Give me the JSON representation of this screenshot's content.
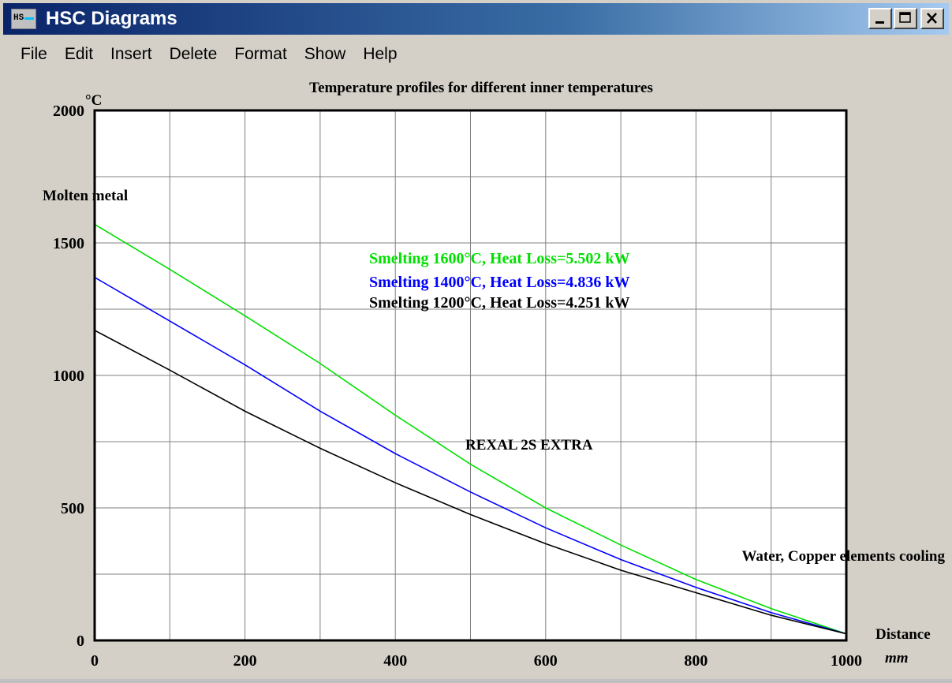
{
  "window": {
    "title": "HSC Diagrams",
    "icon": "hsc-app-icon",
    "controls": [
      "minimize-icon",
      "maximize-icon",
      "close-icon"
    ]
  },
  "menu": {
    "items": [
      "File",
      "Edit",
      "Insert",
      "Delete",
      "Format",
      "Show",
      "Help"
    ]
  },
  "colors": {
    "plot_background": "#ffffff",
    "green_series": "#00e000",
    "blue_series": "#0000ff",
    "black_series": "#000000"
  },
  "chart_data": {
    "type": "line",
    "title": "Temperature profiles for different inner temperatures",
    "ylabel": "°C",
    "xlabel": "Distance",
    "xunit": "mm",
    "xlim": [
      0,
      1000
    ],
    "ylim": [
      0,
      2000
    ],
    "xticks": [
      "0",
      "200",
      "400",
      "600",
      "800",
      "1000"
    ],
    "yticks": [
      "0",
      "500",
      "1000",
      "1500",
      "2000"
    ],
    "grid": true,
    "series": [
      {
        "name": "Smelting 1600°C, Heat Loss=5.502 kW",
        "x": [
          0,
          0,
          100,
          200,
          300,
          400,
          500,
          600,
          700,
          800,
          900,
          1000
        ],
        "y": [
          1600,
          1570,
          1400,
          1225,
          1045,
          850,
          665,
          500,
          360,
          230,
          120,
          25
        ]
      },
      {
        "name": "Smelting 1400°C, Heat Loss=4.836 kW",
        "x": [
          0,
          0,
          100,
          200,
          300,
          400,
          500,
          600,
          700,
          800,
          900,
          1000
        ],
        "y": [
          1400,
          1370,
          1205,
          1040,
          865,
          705,
          560,
          425,
          305,
          200,
          105,
          25
        ]
      },
      {
        "name": "Smelting 1200°C, Heat Loss=4.251 kW",
        "x": [
          0,
          0,
          100,
          200,
          300,
          400,
          500,
          600,
          700,
          800,
          900,
          1000
        ],
        "y": [
          1200,
          1170,
          1020,
          865,
          725,
          595,
          475,
          365,
          265,
          180,
          95,
          25
        ]
      }
    ],
    "annotations": {
      "left": "Molten metal",
      "middle": "REXAL 2S EXTRA",
      "right": "Water, Copper elements cooling"
    }
  }
}
